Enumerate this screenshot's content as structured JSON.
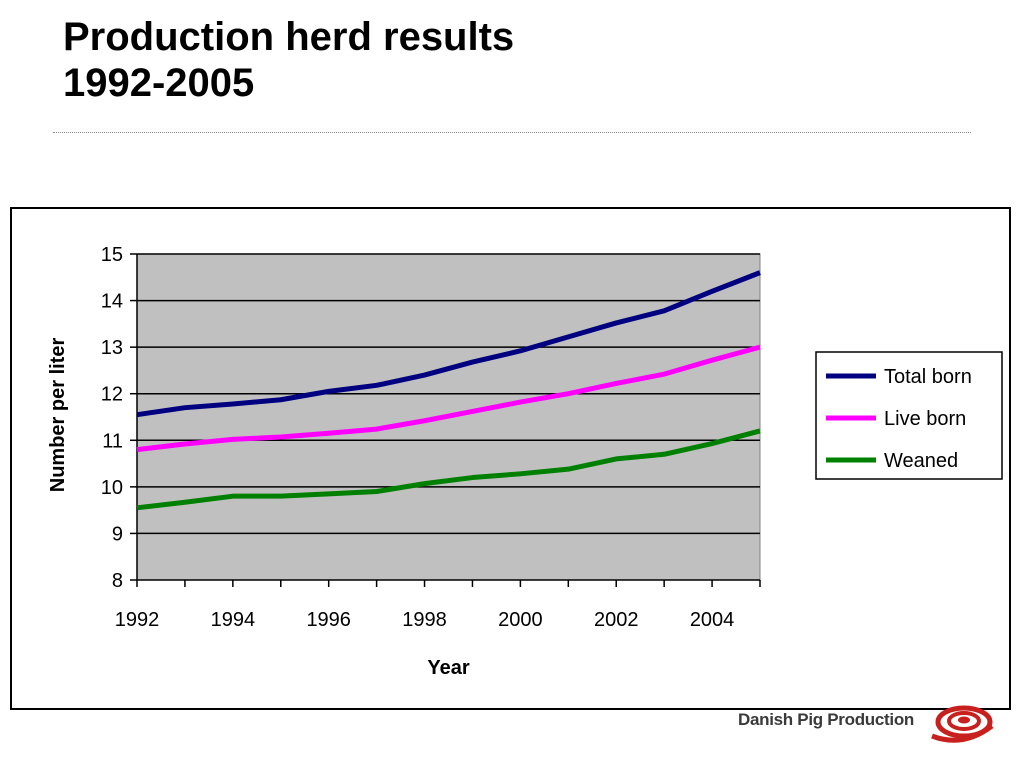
{
  "slide": {
    "title_line1": "Production herd results",
    "title_line2": "1992-2005",
    "brand": "Danish Pig Production"
  },
  "colors": {
    "plot_background": "#c0c0c0",
    "total_born": "#000080",
    "live_born": "#ff00ff",
    "weaned": "#008000"
  },
  "chart_data": {
    "type": "line",
    "xlabel": "Year",
    "ylabel": "Number per liter",
    "xlim": [
      1992,
      2005
    ],
    "ylim": [
      8,
      15
    ],
    "x_ticks": [
      1992,
      1994,
      1996,
      1998,
      2000,
      2002,
      2004
    ],
    "y_ticks": [
      8,
      9,
      10,
      11,
      12,
      13,
      14,
      15
    ],
    "grid": true,
    "legend_position": "right",
    "x": [
      1992,
      1993,
      1994,
      1995,
      1996,
      1997,
      1998,
      1999,
      2000,
      2001,
      2002,
      2003,
      2004,
      2005
    ],
    "series": [
      {
        "name": "Total born",
        "color": "#000080",
        "values": [
          11.55,
          11.7,
          11.78,
          11.87,
          12.05,
          12.18,
          12.4,
          12.68,
          12.92,
          13.22,
          13.52,
          13.78,
          14.2,
          14.6
        ]
      },
      {
        "name": "Live born",
        "color": "#ff00ff",
        "values": [
          10.8,
          10.92,
          11.02,
          11.07,
          11.15,
          11.24,
          11.42,
          11.62,
          11.82,
          12.0,
          12.22,
          12.42,
          12.72,
          13.0
        ]
      },
      {
        "name": "Weaned",
        "color": "#008000",
        "values": [
          9.55,
          9.67,
          9.8,
          9.8,
          9.85,
          9.9,
          10.07,
          10.2,
          10.28,
          10.38,
          10.6,
          10.7,
          10.93,
          11.2
        ]
      }
    ]
  }
}
